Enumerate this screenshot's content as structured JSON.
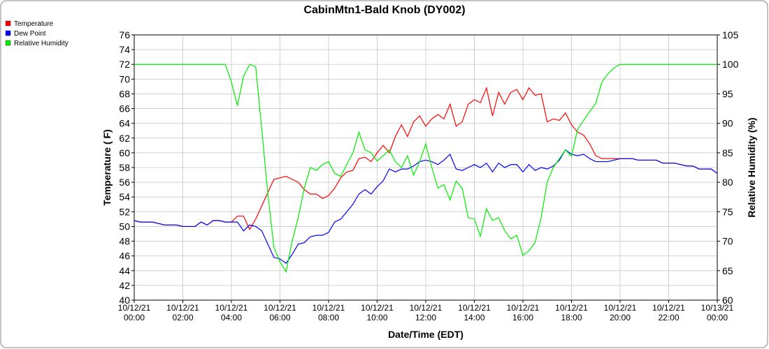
{
  "chart_data": {
    "type": "line",
    "title": "CabinMtn1-Bald Knob (DY002)",
    "x_label": "Date/Time (EDT)",
    "y_label": "Temperature ( F)",
    "y2_label": "Relative Humidity (%)",
    "grid": true,
    "legend": "top-left",
    "xlim": [
      0,
      24
    ],
    "xticks": [
      {
        "value": 0,
        "label": [
          "10/12/21",
          "00:00"
        ]
      },
      {
        "value": 2,
        "label": [
          "10/12/21",
          "02:00"
        ]
      },
      {
        "value": 4,
        "label": [
          "10/12/21",
          "04:00"
        ]
      },
      {
        "value": 6,
        "label": [
          "10/12/21",
          "06:00"
        ]
      },
      {
        "value": 8,
        "label": [
          "10/12/21",
          "08:00"
        ]
      },
      {
        "value": 10,
        "label": [
          "10/12/21",
          "10:00"
        ]
      },
      {
        "value": 12,
        "label": [
          "10/12/21",
          "12:00"
        ]
      },
      {
        "value": 14,
        "label": [
          "10/12/21",
          "14:00"
        ]
      },
      {
        "value": 16,
        "label": [
          "10/12/21",
          "16:00"
        ]
      },
      {
        "value": 18,
        "label": [
          "10/12/21",
          "18:00"
        ]
      },
      {
        "value": 20,
        "label": [
          "10/12/21",
          "20:00"
        ]
      },
      {
        "value": 22,
        "label": [
          "10/12/21",
          "22:00"
        ]
      },
      {
        "value": 24,
        "label": [
          "10/13/21",
          "00:00"
        ]
      }
    ],
    "ylim": [
      40,
      76
    ],
    "yticks": [
      40,
      42,
      44,
      46,
      48,
      50,
      52,
      54,
      56,
      58,
      60,
      62,
      64,
      66,
      68,
      70,
      72,
      74,
      76
    ],
    "y2lim": [
      60,
      105
    ],
    "y2ticks": [
      60,
      65,
      70,
      75,
      80,
      85,
      90,
      95,
      100,
      105
    ],
    "x": [
      0,
      0.25,
      0.5,
      0.75,
      1,
      1.25,
      1.5,
      1.75,
      2,
      2.25,
      2.5,
      2.75,
      3,
      3.25,
      3.5,
      3.75,
      4,
      4.25,
      4.5,
      4.75,
      5,
      5.25,
      5.5,
      5.75,
      6,
      6.25,
      6.5,
      6.75,
      7,
      7.25,
      7.5,
      7.75,
      8,
      8.25,
      8.5,
      8.75,
      9,
      9.25,
      9.5,
      9.75,
      10,
      10.25,
      10.5,
      10.75,
      11,
      11.25,
      11.5,
      11.75,
      12,
      12.25,
      12.5,
      12.75,
      13,
      13.25,
      13.5,
      13.75,
      14,
      14.25,
      14.5,
      14.75,
      15,
      15.25,
      15.5,
      15.75,
      16,
      16.25,
      16.5,
      16.75,
      17,
      17.25,
      17.5,
      17.75,
      18,
      18.25,
      18.5,
      18.75,
      19,
      19.25,
      19.5,
      19.75,
      20,
      20.25,
      20.5,
      20.75,
      21,
      21.25,
      21.5,
      21.75,
      22,
      22.25,
      22.5,
      22.75,
      23,
      23.25,
      23.5,
      23.75,
      24
    ],
    "series": [
      {
        "name": "Temperature",
        "color": "#ff0000",
        "axis": "y",
        "values": [
          50.8,
          50.6,
          50.6,
          50.6,
          50.4,
          50.2,
          50.2,
          50.2,
          50.0,
          50.0,
          50.0,
          50.6,
          50.2,
          50.8,
          50.8,
          50.6,
          50.6,
          51.4,
          51.4,
          49.6,
          51.0,
          52.8,
          54.6,
          56.4,
          56.6,
          56.8,
          56.4,
          56.0,
          55.0,
          54.4,
          54.4,
          53.8,
          54.2,
          55.2,
          56.6,
          57.4,
          57.6,
          59.2,
          59.4,
          58.8,
          60.0,
          61.0,
          60.0,
          62.2,
          63.8,
          62.2,
          64.2,
          65.0,
          63.6,
          64.6,
          65.2,
          64.6,
          66.6,
          63.6,
          64.2,
          66.6,
          67.2,
          66.8,
          68.8,
          65.0,
          68.2,
          66.6,
          68.2,
          68.6,
          67.2,
          68.8,
          67.8,
          68.0,
          64.2,
          64.6,
          64.4,
          65.4,
          63.8,
          62.8,
          62.4,
          61.2,
          59.6,
          59.2,
          59.2,
          59.2,
          59.2,
          59.2,
          59.2,
          59.0,
          59.0,
          59.0,
          59.0,
          58.6,
          58.6,
          58.6,
          58.4,
          58.2,
          58.2,
          57.8,
          57.8,
          57.8,
          57.2
        ]
      },
      {
        "name": "Dew Point",
        "color": "#0000ff",
        "axis": "y",
        "values": [
          50.8,
          50.6,
          50.6,
          50.6,
          50.4,
          50.2,
          50.2,
          50.2,
          50.0,
          50.0,
          50.0,
          50.6,
          50.2,
          50.8,
          50.8,
          50.6,
          50.6,
          50.6,
          49.4,
          50.2,
          50.0,
          49.4,
          47.6,
          45.8,
          45.6,
          45.0,
          46.2,
          47.6,
          47.8,
          48.6,
          48.8,
          48.8,
          49.2,
          50.6,
          51.0,
          52.0,
          53.0,
          54.4,
          55.0,
          54.4,
          55.4,
          56.2,
          57.8,
          57.4,
          57.8,
          57.8,
          58.2,
          58.8,
          59.0,
          58.8,
          58.4,
          59.0,
          59.8,
          57.8,
          57.6,
          58.0,
          58.4,
          58.0,
          58.6,
          57.4,
          58.6,
          58.0,
          58.4,
          58.4,
          57.4,
          58.4,
          57.6,
          58.0,
          57.8,
          58.2,
          59.0,
          60.4,
          59.8,
          59.6,
          59.8,
          59.2,
          58.8,
          58.8,
          58.8,
          59.0,
          59.2,
          59.2,
          59.2,
          59.0,
          59.0,
          59.0,
          59.0,
          58.6,
          58.6,
          58.6,
          58.4,
          58.2,
          58.2,
          57.8,
          57.8,
          57.8,
          57.2
        ]
      },
      {
        "name": "Relative Humidity",
        "color": "#00ee00",
        "axis": "y2",
        "values": [
          100,
          100,
          100,
          100,
          100,
          100,
          100,
          100,
          100,
          100,
          100,
          100,
          100,
          100,
          100,
          100,
          97,
          93,
          98,
          100,
          99.6,
          89,
          78,
          69,
          66.5,
          64.8,
          70,
          74,
          79,
          82.5,
          82,
          83,
          83.5,
          81.5,
          81,
          83,
          85,
          88.5,
          85.5,
          85,
          83.6,
          84.5,
          85.5,
          83.5,
          82.5,
          84.5,
          81.2,
          83.5,
          86.5,
          82.5,
          79,
          79.6,
          77,
          80.2,
          79,
          74,
          73.8,
          70.8,
          75.5,
          73.5,
          74,
          71.8,
          70.4,
          71,
          67.6,
          68.4,
          69.8,
          74,
          80,
          82.5,
          84,
          85.5,
          84.4,
          89,
          90.5,
          92,
          93.4,
          97,
          98.4,
          99.4,
          100,
          100,
          100,
          100,
          100,
          100,
          100,
          100,
          100,
          100,
          100,
          100,
          100,
          100,
          100,
          100,
          100
        ]
      }
    ]
  }
}
